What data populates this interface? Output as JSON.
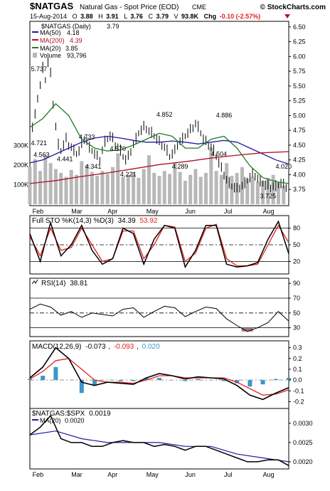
{
  "header": {
    "symbol": "$NATGAS",
    "name": "Natural Gas - Spot Price (EOD)",
    "exchange": "CME",
    "brand": "© StockCharts.com",
    "quote": {
      "date": "15-Aug-2014",
      "o_label": "O",
      "o": "3.88",
      "h_label": "H",
      "h": "3.91",
      "l_label": "L",
      "l": "3.76",
      "c_label": "C",
      "c": "3.79",
      "v_label": "V",
      "v": "93.8K",
      "chg_label": "Chg",
      "chg": "-0.10 (-2.57%)"
    }
  },
  "colors": {
    "price": "#000000",
    "ma50": "#1c1ca6",
    "ma200": "#b0102a",
    "ma20": "#1f7a1f",
    "volume": "#b8b8b8",
    "sto_k": "#000000",
    "sto_d": "#e02020",
    "rsi": "#000000",
    "rsi_fill": "#8b5a5a",
    "macd": "#000000",
    "macd_signal": "#e02020",
    "macd_hist": "#3a98c8",
    "ratio_ma": "#1c1ca6",
    "down": "#e02020"
  },
  "chart_data": [
    {
      "type": "line",
      "panel": "price",
      "legend": [
        {
          "name": "$NATGAS (Daily)",
          "value": "3.79"
        },
        {
          "name": "MA(50)",
          "value": "4.18"
        },
        {
          "name": "MA(200)",
          "value": "4.39"
        },
        {
          "name": "MA(20)",
          "value": "3.85"
        },
        {
          "name": "Volume",
          "value": "93,796"
        }
      ],
      "ylim": [
        3.5,
        6.57
      ],
      "yticks": [
        "6.50",
        "6.25",
        "6.00",
        "5.75",
        "5.50",
        "5.25",
        "5.00",
        "4.75",
        "4.50",
        "4.25",
        "4.00",
        "3.75"
      ],
      "vol_ticks": [
        "300K",
        "200K",
        "100K"
      ],
      "xtick_labels": [
        "Feb",
        "Mar",
        "Apr",
        "May",
        "Jun",
        "Jul",
        "Aug"
      ],
      "annotations": [
        {
          "label": "5.737",
          "x": 0.035,
          "y": 5.75
        },
        {
          "label": "4.721",
          "x": 0.035,
          "y": 4.5
        },
        {
          "label": "4.563",
          "x": 0.045,
          "y": 4.3
        },
        {
          "label": "4.441",
          "x": 0.135,
          "y": 4.23
        },
        {
          "label": "4.733",
          "x": 0.22,
          "y": 4.6
        },
        {
          "label": "4.341",
          "x": 0.245,
          "y": 4.1
        },
        {
          "label": "4.570",
          "x": 0.34,
          "y": 4.4
        },
        {
          "label": "4.221",
          "x": 0.38,
          "y": 3.97
        },
        {
          "label": "4.852",
          "x": 0.52,
          "y": 4.98
        },
        {
          "label": "4.289",
          "x": 0.58,
          "y": 4.1
        },
        {
          "label": "4.886",
          "x": 0.75,
          "y": 4.97
        },
        {
          "label": "4.504",
          "x": 0.73,
          "y": 4.31
        },
        {
          "label": "4.020",
          "x": 0.98,
          "y": 4.1
        },
        {
          "label": "3.725",
          "x": 0.92,
          "y": 3.6
        }
      ],
      "series": [
        {
          "name": "$NATGAS (Daily)",
          "style": "bars",
          "x": [
            0,
            0.01,
            0.02,
            0.03,
            0.04,
            0.05,
            0.06,
            0.07,
            0.08,
            0.09,
            0.1,
            0.11,
            0.12,
            0.13,
            0.14,
            0.15,
            0.16,
            0.17,
            0.18,
            0.19,
            0.2,
            0.21,
            0.22,
            0.23,
            0.24,
            0.25,
            0.26,
            0.27,
            0.28,
            0.29,
            0.3,
            0.31,
            0.32,
            0.33,
            0.34,
            0.35,
            0.36,
            0.37,
            0.38,
            0.39,
            0.4,
            0.41,
            0.42,
            0.43,
            0.44,
            0.45,
            0.46,
            0.47,
            0.48,
            0.49,
            0.5,
            0.51,
            0.52,
            0.53,
            0.54,
            0.55,
            0.56,
            0.57,
            0.58,
            0.59,
            0.6,
            0.61,
            0.62,
            0.63,
            0.64,
            0.65,
            0.66,
            0.67,
            0.68,
            0.69,
            0.7,
            0.71,
            0.72,
            0.73,
            0.74,
            0.75,
            0.76,
            0.77,
            0.78,
            0.79,
            0.8,
            0.81,
            0.82,
            0.83,
            0.84,
            0.85,
            0.86,
            0.87,
            0.88,
            0.89,
            0.9,
            0.91,
            0.92,
            0.93,
            0.94,
            0.95,
            0.96,
            0.97,
            0.98,
            0.99
          ],
          "values": [
            4.7,
            4.8,
            5.0,
            5.3,
            5.5,
            5.8,
            5.6,
            5.9,
            5.7,
            5.2,
            4.8,
            4.5,
            4.4,
            4.5,
            4.6,
            4.5,
            4.45,
            4.4,
            4.35,
            4.4,
            4.5,
            4.6,
            4.55,
            4.45,
            4.4,
            4.35,
            4.3,
            4.25,
            4.4,
            4.55,
            4.6,
            4.65,
            4.6,
            4.5,
            4.45,
            4.4,
            4.3,
            4.25,
            4.3,
            4.4,
            4.5,
            4.6,
            4.7,
            4.75,
            4.8,
            4.78,
            4.72,
            4.7,
            4.65,
            4.6,
            4.55,
            4.5,
            4.45,
            4.4,
            4.3,
            4.35,
            4.4,
            4.5,
            4.55,
            4.6,
            4.65,
            4.7,
            4.75,
            4.8,
            4.85,
            4.8,
            4.7,
            4.6,
            4.55,
            4.5,
            4.45,
            4.4,
            4.3,
            4.2,
            4.1,
            4.0,
            3.9,
            3.85,
            3.8,
            3.78,
            3.75,
            3.78,
            3.8,
            3.85,
            3.9,
            3.95,
            4.0,
            3.98,
            3.92,
            3.88,
            3.85,
            3.82,
            3.8,
            3.78,
            3.79,
            3.8,
            3.82,
            3.85,
            3.82,
            3.79
          ]
        },
        {
          "name": "MA(50)",
          "x": [
            0,
            0.05,
            0.1,
            0.15,
            0.2,
            0.25,
            0.3,
            0.35,
            0.4,
            0.45,
            0.5,
            0.55,
            0.6,
            0.65,
            0.7,
            0.75,
            0.8,
            0.85,
            0.9,
            0.95,
            1
          ],
          "values": [
            4.2,
            4.25,
            4.35,
            4.45,
            4.55,
            4.62,
            4.65,
            4.62,
            4.58,
            4.55,
            4.55,
            4.57,
            4.55,
            4.52,
            4.55,
            4.58,
            4.55,
            4.45,
            4.35,
            4.25,
            4.18
          ]
        },
        {
          "name": "MA(200)",
          "x": [
            0,
            0.1,
            0.2,
            0.3,
            0.4,
            0.5,
            0.6,
            0.7,
            0.8,
            0.9,
            1
          ],
          "values": [
            3.85,
            3.9,
            3.97,
            4.03,
            4.1,
            4.17,
            4.22,
            4.28,
            4.33,
            4.37,
            4.39
          ]
        },
        {
          "name": "MA(20)",
          "x": [
            0,
            0.05,
            0.1,
            0.15,
            0.2,
            0.25,
            0.3,
            0.35,
            0.4,
            0.45,
            0.5,
            0.55,
            0.6,
            0.65,
            0.7,
            0.75,
            0.8,
            0.85,
            0.9,
            0.95,
            1
          ],
          "values": [
            4.8,
            4.95,
            5.2,
            5.0,
            4.6,
            4.45,
            4.4,
            4.42,
            4.5,
            4.6,
            4.7,
            4.65,
            4.45,
            4.45,
            4.6,
            4.65,
            4.45,
            4.15,
            3.95,
            3.88,
            3.85
          ]
        },
        {
          "name": "Volume",
          "style": "volume",
          "x": [
            0,
            0.02,
            0.04,
            0.06,
            0.08,
            0.1,
            0.12,
            0.14,
            0.16,
            0.18,
            0.2,
            0.22,
            0.24,
            0.26,
            0.28,
            0.3,
            0.32,
            0.34,
            0.36,
            0.38,
            0.4,
            0.42,
            0.44,
            0.46,
            0.48,
            0.5,
            0.52,
            0.54,
            0.56,
            0.58,
            0.6,
            0.62,
            0.64,
            0.66,
            0.68,
            0.7,
            0.72,
            0.74,
            0.76,
            0.78,
            0.8,
            0.82,
            0.84,
            0.86,
            0.88,
            0.9,
            0.92,
            0.94,
            0.96,
            0.98
          ],
          "values": [
            190,
            230,
            170,
            250,
            210,
            180,
            160,
            140,
            175,
            150,
            220,
            200,
            165,
            145,
            170,
            155,
            190,
            260,
            140,
            150,
            165,
            135,
            180,
            250,
            160,
            145,
            170,
            155,
            210,
            165,
            120,
            150,
            180,
            140,
            160,
            290,
            170,
            150,
            210,
            145,
            160,
            190,
            130,
            140,
            115,
            120,
            135,
            150,
            110,
            94
          ]
        }
      ]
    },
    {
      "type": "line",
      "panel": "stochastic",
      "title": "Full STO %K(14,3) %D(3)",
      "k_value": "34.39",
      "d_value": "53.92",
      "ylim": [
        0,
        100
      ],
      "yticks": [
        "80",
        "50",
        "20"
      ],
      "series": [
        {
          "name": "%K",
          "x": [
            0,
            0.04,
            0.08,
            0.12,
            0.16,
            0.2,
            0.24,
            0.28,
            0.32,
            0.36,
            0.4,
            0.44,
            0.48,
            0.52,
            0.56,
            0.6,
            0.64,
            0.68,
            0.72,
            0.76,
            0.8,
            0.84,
            0.88,
            0.92,
            0.96,
            1
          ],
          "values": [
            70,
            20,
            90,
            30,
            50,
            85,
            40,
            15,
            25,
            80,
            70,
            15,
            60,
            85,
            80,
            10,
            40,
            85,
            85,
            15,
            10,
            12,
            18,
            60,
            92,
            34
          ]
        },
        {
          "name": "%D",
          "x": [
            0,
            0.04,
            0.08,
            0.12,
            0.16,
            0.2,
            0.24,
            0.28,
            0.32,
            0.36,
            0.4,
            0.44,
            0.48,
            0.52,
            0.56,
            0.6,
            0.64,
            0.68,
            0.72,
            0.76,
            0.8,
            0.84,
            0.88,
            0.92,
            0.96,
            1
          ],
          "values": [
            65,
            30,
            80,
            40,
            45,
            80,
            50,
            20,
            25,
            75,
            75,
            25,
            50,
            85,
            82,
            20,
            35,
            80,
            87,
            25,
            12,
            12,
            15,
            50,
            85,
            54
          ]
        }
      ]
    },
    {
      "type": "line",
      "panel": "rsi",
      "title": "RSI(14)",
      "value": "38.81",
      "ylim": [
        20,
        95
      ],
      "yticks": [
        "90",
        "70",
        "50",
        "30"
      ],
      "series": [
        {
          "name": "RSI(14)",
          "x": [
            0,
            0.04,
            0.08,
            0.12,
            0.16,
            0.2,
            0.24,
            0.28,
            0.32,
            0.36,
            0.4,
            0.44,
            0.48,
            0.52,
            0.56,
            0.6,
            0.64,
            0.68,
            0.72,
            0.76,
            0.8,
            0.84,
            0.88,
            0.92,
            0.96,
            1
          ],
          "values": [
            55,
            62,
            58,
            47,
            52,
            44,
            50,
            48,
            46,
            55,
            57,
            44,
            52,
            59,
            57,
            45,
            52,
            58,
            56,
            42,
            33,
            25,
            30,
            37,
            52,
            39
          ]
        }
      ]
    },
    {
      "type": "bar",
      "panel": "macd",
      "title": "MACD(12,26,9)",
      "macd_value": "-0.073",
      "signal_value": "-0.093",
      "hist_value": "0.020",
      "ylim": [
        -0.25,
        0.35
      ],
      "yticks": [
        "0.3",
        "0.2",
        "0.1",
        "0.0",
        "-0.1",
        "-0.2"
      ],
      "series": [
        {
          "name": "MACD",
          "x": [
            0,
            0.05,
            0.1,
            0.15,
            0.2,
            0.25,
            0.3,
            0.35,
            0.4,
            0.45,
            0.5,
            0.55,
            0.6,
            0.65,
            0.7,
            0.75,
            0.8,
            0.85,
            0.9,
            0.95,
            1
          ],
          "values": [
            0.02,
            0.12,
            0.3,
            0.2,
            -0.02,
            -0.05,
            -0.02,
            -0.03,
            -0.04,
            0.02,
            0.06,
            0.04,
            0.01,
            0.03,
            0.02,
            0.01,
            -0.05,
            -0.14,
            -0.18,
            -0.12,
            -0.07
          ]
        },
        {
          "name": "Signal",
          "x": [
            0,
            0.05,
            0.1,
            0.15,
            0.2,
            0.25,
            0.3,
            0.35,
            0.4,
            0.45,
            0.5,
            0.55,
            0.6,
            0.65,
            0.7,
            0.75,
            0.8,
            0.85,
            0.9,
            0.95,
            1
          ],
          "values": [
            0.01,
            0.08,
            0.18,
            0.2,
            0.1,
            0.0,
            -0.02,
            -0.02,
            -0.03,
            0.0,
            0.04,
            0.04,
            0.02,
            0.02,
            0.02,
            0.02,
            -0.02,
            -0.08,
            -0.14,
            -0.13,
            -0.09
          ]
        },
        {
          "name": "Histogram",
          "x": [
            0,
            0.05,
            0.1,
            0.15,
            0.2,
            0.25,
            0.3,
            0.35,
            0.4,
            0.45,
            0.5,
            0.55,
            0.6,
            0.65,
            0.7,
            0.75,
            0.8,
            0.85,
            0.9,
            0.95,
            1
          ],
          "values": [
            0.01,
            0.04,
            0.12,
            0.0,
            -0.12,
            -0.05,
            0.0,
            -0.01,
            -0.01,
            0.02,
            0.02,
            0.0,
            -0.01,
            0.01,
            0.0,
            -0.01,
            -0.03,
            -0.06,
            -0.04,
            0.01,
            0.02
          ]
        }
      ]
    },
    {
      "type": "line",
      "panel": "ratio",
      "title": "$NATGAS:$SPX",
      "value": "0.0019",
      "ma_name": "MA(20)",
      "ma_value": "0.0020",
      "ylim": [
        0.00185,
        0.00335
      ],
      "yticks": [
        "0.0030",
        "0.0025",
        "0.0020"
      ],
      "xtick_labels": [
        "Feb",
        "Mar",
        "Apr",
        "May",
        "Jun",
        "Jul",
        "Aug"
      ],
      "series": [
        {
          "name": "$NATGAS:$SPX",
          "x": [
            0,
            0.04,
            0.08,
            0.12,
            0.16,
            0.2,
            0.24,
            0.28,
            0.32,
            0.36,
            0.4,
            0.44,
            0.48,
            0.52,
            0.56,
            0.6,
            0.64,
            0.68,
            0.72,
            0.76,
            0.8,
            0.84,
            0.88,
            0.92,
            0.96,
            1
          ],
          "values": [
            0.0027,
            0.0029,
            0.0032,
            0.0026,
            0.0025,
            0.0025,
            0.0024,
            0.0024,
            0.0025,
            0.00255,
            0.0025,
            0.0025,
            0.0024,
            0.00245,
            0.0024,
            0.0023,
            0.0024,
            0.0024,
            0.0023,
            0.0022,
            0.0021,
            0.002,
            0.002,
            0.00205,
            0.00205,
            0.0019
          ]
        },
        {
          "name": "MA(20)",
          "x": [
            0,
            0.1,
            0.2,
            0.3,
            0.4,
            0.5,
            0.6,
            0.7,
            0.8,
            0.9,
            1
          ],
          "values": [
            0.0027,
            0.0028,
            0.0026,
            0.0025,
            0.0025,
            0.0025,
            0.0024,
            0.0024,
            0.0022,
            0.0021,
            0.002
          ]
        }
      ]
    }
  ]
}
